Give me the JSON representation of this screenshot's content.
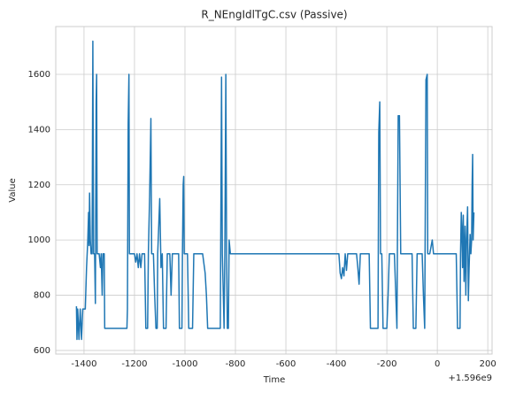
{
  "chart_data": {
    "type": "line",
    "title": "R_NEngIdlTgC.csv (Passive)",
    "x_label": "Time",
    "y_label": "Value",
    "x_offset_label": "+1.596e9",
    "xlim": [
      -1512,
      217
    ],
    "ylim": [
      587,
      1773
    ],
    "xticks": [
      -1400,
      -1200,
      -1000,
      -800,
      -600,
      -400,
      -200,
      0,
      200
    ],
    "yticks": [
      600,
      800,
      1000,
      1200,
      1400,
      1600
    ],
    "grid": true,
    "series": [
      {
        "name": "Value",
        "color": "#1f77b4",
        "x": [
          -1430,
          -1428,
          -1425,
          -1420,
          -1415,
          -1410,
          -1405,
          -1395,
          -1390,
          -1385,
          -1382,
          -1380,
          -1378,
          -1375,
          -1372,
          -1368,
          -1365,
          -1362,
          -1358,
          -1355,
          -1352,
          -1350,
          -1348,
          -1340,
          -1335,
          -1332,
          -1328,
          -1325,
          -1320,
          -1318,
          -1230,
          -1228,
          -1225,
          -1222,
          -1220,
          -1200,
          -1195,
          -1190,
          -1185,
          -1180,
          -1175,
          -1170,
          -1160,
          -1155,
          -1148,
          -1145,
          -1140,
          -1135,
          -1132,
          -1125,
          -1120,
          -1115,
          -1110,
          -1108,
          -1100,
          -1095,
          -1090,
          -1085,
          -1075,
          -1070,
          -1060,
          -1055,
          -1050,
          -1040,
          -1025,
          -1022,
          -1012,
          -1010,
          -1007,
          -1005,
          -1003,
          -990,
          -985,
          -970,
          -965,
          -930,
          -920,
          -915,
          -910,
          -860,
          -855,
          -852,
          -848,
          -845,
          -842,
          -838,
          -835,
          -832,
          -828,
          -825,
          -820,
          -390,
          -385,
          -380,
          -375,
          -370,
          -365,
          -360,
          -355,
          -320,
          -315,
          -310,
          -305,
          -270,
          -265,
          -235,
          -232,
          -228,
          -225,
          -220,
          -215,
          -200,
          -195,
          -190,
          -170,
          -160,
          -155,
          -150,
          -145,
          -100,
          -95,
          -85,
          -80,
          -60,
          -55,
          -50,
          -45,
          -40,
          -38,
          -30,
          -20,
          -15,
          75,
          78,
          80,
          90,
          92,
          95,
          97,
          100,
          103,
          106,
          110,
          113,
          116,
          120,
          123,
          126,
          130,
          133,
          136,
          138,
          140,
          142,
          145
        ],
        "values": [
          760,
          640,
          750,
          640,
          750,
          640,
          750,
          750,
          900,
          1000,
          1100,
          980,
          1170,
          1000,
          950,
          950,
          1720,
          950,
          950,
          770,
          1500,
          1600,
          950,
          950,
          900,
          950,
          800,
          950,
          950,
          680,
          680,
          750,
          1420,
          1600,
          950,
          950,
          920,
          950,
          900,
          950,
          900,
          950,
          950,
          680,
          680,
          950,
          1160,
          1440,
          950,
          950,
          800,
          680,
          680,
          950,
          1150,
          900,
          950,
          680,
          680,
          950,
          950,
          800,
          950,
          950,
          950,
          680,
          680,
          950,
          1200,
          1230,
          950,
          950,
          680,
          680,
          950,
          950,
          880,
          800,
          680,
          680,
          1590,
          950,
          800,
          680,
          950,
          1600,
          950,
          680,
          680,
          1000,
          950,
          950,
          880,
          860,
          900,
          870,
          950,
          890,
          950,
          950,
          900,
          840,
          950,
          950,
          680,
          680,
          1390,
          1500,
          950,
          950,
          680,
          680,
          800,
          950,
          950,
          680,
          1450,
          1450,
          950,
          950,
          680,
          680,
          950,
          950,
          800,
          680,
          1580,
          1600,
          950,
          950,
          1000,
          950,
          950,
          800,
          680,
          680,
          950,
          1100,
          1050,
          900,
          1090,
          850,
          1050,
          800,
          1000,
          1120,
          780,
          900,
          1020,
          950,
          1000,
          1200,
          1310,
          1000,
          1100
        ]
      }
    ]
  }
}
